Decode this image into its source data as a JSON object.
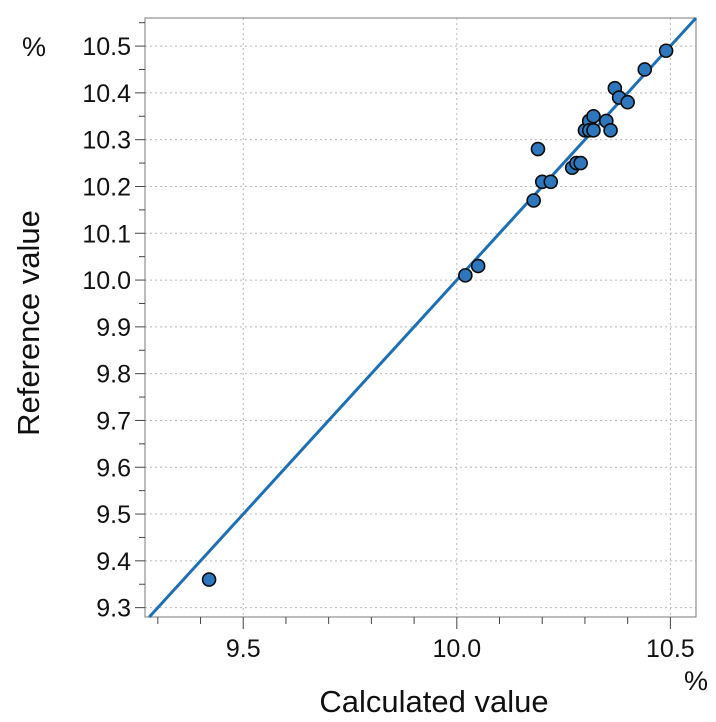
{
  "chart_data": {
    "type": "scatter",
    "xlabel": "Calculated value",
    "ylabel": "Reference value",
    "x_unit": "%",
    "y_unit": "%",
    "xlim": [
      9.27,
      10.56
    ],
    "ylim": [
      9.28,
      10.56
    ],
    "x_ticks": [
      9.5,
      10.0,
      10.5
    ],
    "x_tick_labels": [
      "9.5",
      "10.0",
      "10.5"
    ],
    "y_ticks": [
      9.3,
      9.4,
      9.5,
      9.6,
      9.7,
      9.8,
      9.9,
      10.0,
      10.1,
      10.2,
      10.3,
      10.4,
      10.5
    ],
    "y_tick_labels": [
      "9.3",
      "9.4",
      "9.5",
      "9.6",
      "9.7",
      "9.8",
      "9.9",
      "10.0",
      "10.1",
      "10.2",
      "10.3",
      "10.4",
      "10.5"
    ],
    "grid": true,
    "reference_line": {
      "type": "identity",
      "color": "#1f6fb5"
    },
    "point_color": "#2e77bd",
    "point_edge_color": "#0b0b0b",
    "series": [
      {
        "x": [
          9.42,
          10.02,
          10.05,
          10.18,
          10.19,
          10.2,
          10.22,
          10.27,
          10.28,
          10.29,
          10.3,
          10.31,
          10.32,
          10.31,
          10.32,
          10.35,
          10.36,
          10.37,
          10.38,
          10.4,
          10.44,
          10.49
        ],
        "y": [
          9.36,
          10.01,
          10.03,
          10.17,
          10.28,
          10.21,
          10.21,
          10.24,
          10.25,
          10.25,
          10.32,
          10.34,
          10.35,
          10.32,
          10.32,
          10.34,
          10.32,
          10.41,
          10.39,
          10.38,
          10.45,
          10.49
        ]
      }
    ]
  }
}
